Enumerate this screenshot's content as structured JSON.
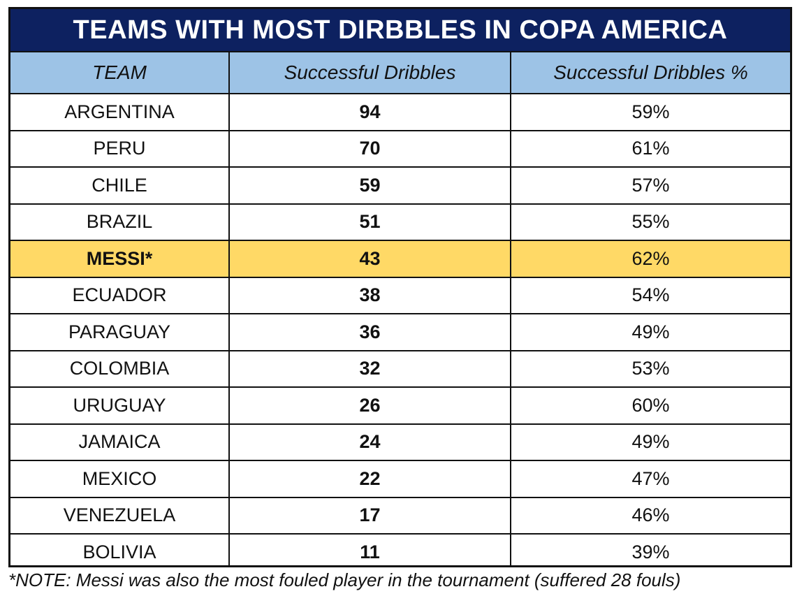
{
  "chart_data": {
    "type": "table",
    "title": "TEAMS WITH MOST DIRBBLES IN COPA AMERICA",
    "columns": [
      "TEAM",
      "Successful Dribbles",
      "Successful Dribbles %"
    ],
    "rows": [
      {
        "team": "ARGENTINA",
        "dribbles": "94",
        "pct": "59%",
        "highlight": false
      },
      {
        "team": "PERU",
        "dribbles": "70",
        "pct": "61%",
        "highlight": false
      },
      {
        "team": "CHILE",
        "dribbles": "59",
        "pct": "57%",
        "highlight": false
      },
      {
        "team": "BRAZIL",
        "dribbles": "51",
        "pct": "55%",
        "highlight": false
      },
      {
        "team": "MESSI*",
        "dribbles": "43",
        "pct": "62%",
        "highlight": true
      },
      {
        "team": "ECUADOR",
        "dribbles": "38",
        "pct": "54%",
        "highlight": false
      },
      {
        "team": "PARAGUAY",
        "dribbles": "36",
        "pct": "49%",
        "highlight": false
      },
      {
        "team": "COLOMBIA",
        "dribbles": "32",
        "pct": "53%",
        "highlight": false
      },
      {
        "team": "URUGUAY",
        "dribbles": "26",
        "pct": "60%",
        "highlight": false
      },
      {
        "team": "JAMAICA",
        "dribbles": "24",
        "pct": "49%",
        "highlight": false
      },
      {
        "team": "MEXICO",
        "dribbles": "22",
        "pct": "47%",
        "highlight": false
      },
      {
        "team": "VENEZUELA",
        "dribbles": "17",
        "pct": "46%",
        "highlight": false
      },
      {
        "team": "BOLIVIA",
        "dribbles": "11",
        "pct": "39%",
        "highlight": false
      }
    ],
    "footnote": "*NOTE: Messi was also the most fouled player in the tournament (suffered 28 fouls)"
  },
  "colors": {
    "title_background": "#0d2160",
    "header_background": "#9dc3e6",
    "highlight_background": "#ffd966"
  }
}
